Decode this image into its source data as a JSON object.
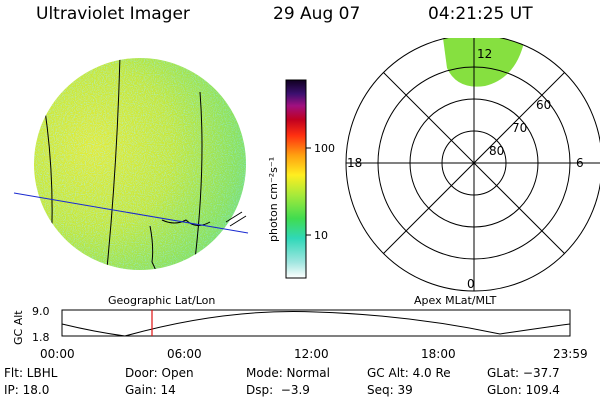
{
  "header": {
    "title": "Ultraviolet Imager",
    "date": "29 Aug 07",
    "time": "04:21:25 UT"
  },
  "colorbar": {
    "label": "photon cm⁻²s⁻¹",
    "ticks": [
      "100",
      "10"
    ]
  },
  "polar_plot": {
    "mlt_labels": {
      "top": "12",
      "left": "18",
      "right": "6",
      "bottom": "0"
    },
    "lat_labels": [
      "60",
      "70",
      "80"
    ]
  },
  "timeline": {
    "ylabel": "GC Alt",
    "yticks": [
      "9.0",
      "1.8"
    ],
    "left_title": "Geographic Lat/Lon",
    "right_title": "Apex MLat/MLT",
    "xticks": [
      "00:00",
      "06:00",
      "12:00",
      "18:00",
      "23:59"
    ]
  },
  "info": {
    "flt": "Flt: LBHL",
    "ip": "IP: 18.0",
    "door": "Door: Open",
    "gain": "Gain: 14",
    "mode": "Mode: Normal",
    "dsp": "Dsp:  −3.9",
    "gcalt": "GC Alt: 4.0 Re",
    "seq": "Seq: 39",
    "glat": "GLat: −37.7",
    "glon": "GLon: 109.4"
  }
}
